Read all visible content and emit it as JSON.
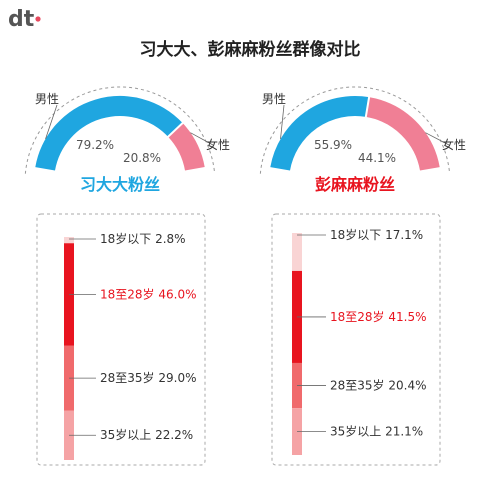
{
  "logo": {
    "text": "dt",
    "dot_color": "#e84a5f"
  },
  "chart_data": {
    "type": "pie",
    "title": "习大大、彭麻麻粉丝群像对比",
    "panels": [
      {
        "name": "习大大粉丝",
        "name_color": "#1fa6e0",
        "gender": [
          {
            "label": "男性",
            "value": 79.2,
            "value_text": "79.2%",
            "color": "#1fa6e0"
          },
          {
            "label": "女性",
            "value": 20.8,
            "value_text": "20.8%",
            "color": "#f07f95"
          }
        ],
        "age": [
          {
            "label": "18岁以下",
            "value": 2.8,
            "value_text": "2.8%",
            "color": "#f9d4d4",
            "highlight": false
          },
          {
            "label": "18至28岁",
            "value": 46.0,
            "value_text": "46.0%",
            "color": "#e8141f",
            "highlight": true
          },
          {
            "label": "28至35岁",
            "value": 29.0,
            "value_text": "29.0%",
            "color": "#f06a6c",
            "highlight": false
          },
          {
            "label": "35岁以上",
            "value": 22.2,
            "value_text": "22.2%",
            "color": "#f5a3a5",
            "highlight": false
          }
        ]
      },
      {
        "name": "彭麻麻粉丝",
        "name_color": "#e8141f",
        "gender": [
          {
            "label": "男性",
            "value": 55.9,
            "value_text": "55.9%",
            "color": "#1fa6e0"
          },
          {
            "label": "女性",
            "value": 44.1,
            "value_text": "44.1%",
            "color": "#f07f95"
          }
        ],
        "age": [
          {
            "label": "18岁以下",
            "value": 17.1,
            "value_text": "17.1%",
            "color": "#f9d4d4",
            "highlight": false
          },
          {
            "label": "18至28岁",
            "value": 41.5,
            "value_text": "41.5%",
            "color": "#e8141f",
            "highlight": true
          },
          {
            "label": "28至35岁",
            "value": 20.4,
            "value_text": "20.4%",
            "color": "#f06a6c",
            "highlight": false
          },
          {
            "label": "35岁以上",
            "value": 21.1,
            "value_text": "21.1%",
            "color": "#f5a3a5",
            "highlight": false
          }
        ]
      }
    ]
  }
}
